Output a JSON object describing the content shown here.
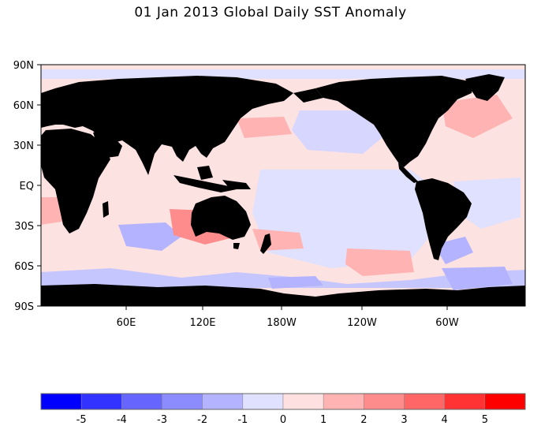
{
  "title": "01 Jan 2013 Global Daily SST Anomaly",
  "map": {
    "lat_labels": [
      "90N",
      "60N",
      "30N",
      "EQ",
      "30S",
      "60S",
      "90S"
    ],
    "lon_labels": [
      "60E",
      "120E",
      "180W",
      "120W",
      "60W"
    ],
    "land_color": "#000000",
    "ocean_base_color": "#fde2e2"
  },
  "colorbar": {
    "tick_labels": [
      "-5",
      "-4",
      "-3",
      "-2",
      "-1",
      "0",
      "1",
      "2",
      "3",
      "4",
      "5"
    ],
    "colors": [
      "#0000ff",
      "#3333ff",
      "#6666ff",
      "#8c8cff",
      "#b3b3ff",
      "#e0e0ff",
      "#ffe0e0",
      "#ffb3b3",
      "#ff8c8c",
      "#ff6666",
      "#ff3333",
      "#ff0000"
    ]
  }
}
